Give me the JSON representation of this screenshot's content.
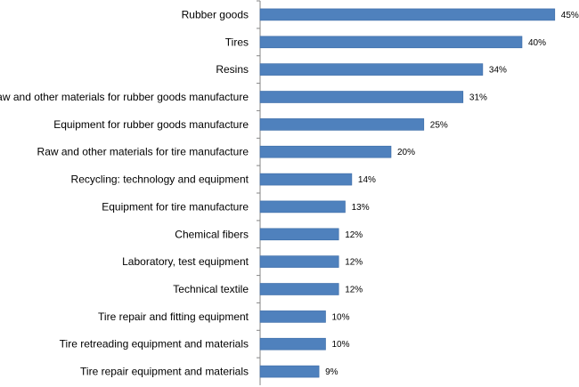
{
  "chart_data": {
    "type": "bar",
    "orientation": "horizontal",
    "categories": [
      "Rubber goods",
      "Tires",
      "Resins",
      "Raw and other materials for rubber goods manufacture",
      "Equipment for rubber goods manufacture",
      "Raw and other materials for tire manufacture",
      "Recycling: technology and equipment",
      "Equipment for tire manufacture",
      "Chemical fibers",
      "Laboratory, test equipment",
      "Technical textile",
      "Tire repair and fitting equipment",
      "Tire retreading equipment and materials",
      "Tire repair equipment and materials"
    ],
    "values": [
      45,
      40,
      34,
      31,
      25,
      20,
      14,
      13,
      12,
      12,
      12,
      10,
      10,
      9
    ],
    "value_labels": [
      "45%",
      "40%",
      "34%",
      "31%",
      "25%",
      "20%",
      "14%",
      "13%",
      "12%",
      "12%",
      "12%",
      "10%",
      "10%",
      "9%"
    ],
    "xlim": [
      0,
      50
    ],
    "unit": "%",
    "title": "",
    "xlabel": "",
    "ylabel": "",
    "grid": false,
    "legend": "none",
    "colors": {
      "bar_fill": "#4F81BD",
      "bar_stroke": "#3A6AA5",
      "axis": "#868686",
      "text": "#000000"
    }
  }
}
